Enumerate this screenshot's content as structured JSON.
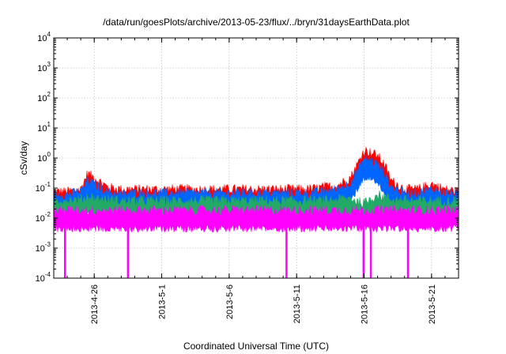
{
  "chart_data": {
    "type": "line",
    "title": "/data/run/goesPlots/archive/2013-05-23/flux/../bryn/31daysEarthData.plot",
    "xlabel": "Coordinated Universal Time (UTC)",
    "ylabel": "cSv/day",
    "yscale": "log",
    "ylim": [
      0.0001,
      10000
    ],
    "y_ticks": [
      {
        "base": "10",
        "exp": "-4",
        "value": 0.0001
      },
      {
        "base": "10",
        "exp": "-3",
        "value": 0.001
      },
      {
        "base": "10",
        "exp": "-2",
        "value": 0.01
      },
      {
        "base": "10",
        "exp": "-1",
        "value": 0.1
      },
      {
        "base": "10",
        "exp": "0",
        "value": 1
      },
      {
        "base": "10",
        "exp": "1",
        "value": 10
      },
      {
        "base": "10",
        "exp": "2",
        "value": 100
      },
      {
        "base": "10",
        "exp": "3",
        "value": 1000
      },
      {
        "base": "10",
        "exp": "4",
        "value": 10000
      }
    ],
    "xlim": [
      "2013-04-23",
      "2013-05-23"
    ],
    "x_ticks": [
      "2013-4-26",
      "2013-5-1",
      "2013-5-6",
      "2013-5-11",
      "2013-5-16",
      "2013-5-21"
    ],
    "grid": true,
    "legend": "none",
    "series": [
      {
        "color": "#ff0000",
        "points": [
          [
            "2013-04-23",
            0.05
          ],
          [
            "2013-04-24",
            0.05
          ],
          [
            "2013-04-25",
            0.06
          ],
          [
            "2013-04-25T12:00",
            0.2
          ],
          [
            "2013-04-26",
            0.15
          ],
          [
            "2013-04-27",
            0.07
          ],
          [
            "2013-04-28",
            0.06
          ],
          [
            "2013-04-29",
            0.06
          ],
          [
            "2013-04-30",
            0.06
          ],
          [
            "2013-05-01",
            0.06
          ],
          [
            "2013-05-02",
            0.06
          ],
          [
            "2013-05-03",
            0.06
          ],
          [
            "2013-05-04",
            0.06
          ],
          [
            "2013-05-05",
            0.06
          ],
          [
            "2013-05-06",
            0.06
          ],
          [
            "2013-05-07",
            0.06
          ],
          [
            "2013-05-08",
            0.06
          ],
          [
            "2013-05-09",
            0.06
          ],
          [
            "2013-05-10",
            0.06
          ],
          [
            "2013-05-11",
            0.06
          ],
          [
            "2013-05-12",
            0.06
          ],
          [
            "2013-05-13",
            0.07
          ],
          [
            "2013-05-14",
            0.08
          ],
          [
            "2013-05-15",
            0.15
          ],
          [
            "2013-05-15T12:00",
            0.4
          ],
          [
            "2013-05-16",
            1.2
          ],
          [
            "2013-05-16T12:00",
            1.0
          ],
          [
            "2013-05-17",
            0.8
          ],
          [
            "2013-05-17T12:00",
            0.4
          ],
          [
            "2013-05-18",
            0.12
          ],
          [
            "2013-05-19",
            0.06
          ],
          [
            "2013-05-20",
            0.06
          ],
          [
            "2013-05-21",
            0.09
          ],
          [
            "2013-05-22",
            0.06
          ],
          [
            "2013-05-23",
            0.05
          ]
        ]
      },
      {
        "color": "#0066ff",
        "points": [
          [
            "2013-04-23",
            0.04
          ],
          [
            "2013-04-24",
            0.04
          ],
          [
            "2013-04-25",
            0.05
          ],
          [
            "2013-04-25T12:00",
            0.11
          ],
          [
            "2013-04-26",
            0.09
          ],
          [
            "2013-04-27",
            0.05
          ],
          [
            "2013-04-28",
            0.04
          ],
          [
            "2013-04-29",
            0.045
          ],
          [
            "2013-04-30",
            0.045
          ],
          [
            "2013-05-01",
            0.045
          ],
          [
            "2013-05-02",
            0.045
          ],
          [
            "2013-05-03",
            0.045
          ],
          [
            "2013-05-04",
            0.045
          ],
          [
            "2013-05-05",
            0.045
          ],
          [
            "2013-05-06",
            0.045
          ],
          [
            "2013-05-07",
            0.045
          ],
          [
            "2013-05-08",
            0.045
          ],
          [
            "2013-05-09",
            0.045
          ],
          [
            "2013-05-10",
            0.045
          ],
          [
            "2013-05-11",
            0.045
          ],
          [
            "2013-05-12",
            0.045
          ],
          [
            "2013-05-13",
            0.05
          ],
          [
            "2013-05-14",
            0.06
          ],
          [
            "2013-05-15",
            0.1
          ],
          [
            "2013-05-15T12:00",
            0.25
          ],
          [
            "2013-05-16",
            0.6
          ],
          [
            "2013-05-16T12:00",
            0.55
          ],
          [
            "2013-05-17",
            0.4
          ],
          [
            "2013-05-17T12:00",
            0.2
          ],
          [
            "2013-05-18",
            0.07
          ],
          [
            "2013-05-19",
            0.045
          ],
          [
            "2013-05-20",
            0.045
          ],
          [
            "2013-05-21",
            0.06
          ],
          [
            "2013-05-22",
            0.045
          ],
          [
            "2013-05-23",
            0.04
          ]
        ]
      },
      {
        "color": "#22aa66",
        "points": [
          [
            "2013-04-23",
            0.025
          ],
          [
            "2013-04-25",
            0.027
          ],
          [
            "2013-04-25T12:00",
            0.035
          ],
          [
            "2013-04-26",
            0.03
          ],
          [
            "2013-04-28",
            0.025
          ],
          [
            "2013-05-03",
            0.025
          ],
          [
            "2013-05-08",
            0.025
          ],
          [
            "2013-05-13",
            0.025
          ],
          [
            "2013-05-15",
            0.03
          ],
          [
            "2013-05-16",
            0.02
          ],
          [
            "2013-05-16T12:00",
            0.03
          ],
          [
            "2013-05-17",
            0.04
          ],
          [
            "2013-05-18",
            0.028
          ],
          [
            "2013-05-20",
            0.025
          ],
          [
            "2013-05-23",
            0.025
          ]
        ]
      },
      {
        "color": "#ff00ff",
        "points": [
          [
            "2013-04-23",
            0.012
          ],
          [
            "2013-05-23",
            0.012
          ]
        ],
        "dropouts": [
          "2013-04-23T20:00",
          "2013-04-28T12:00",
          "2013-05-10T06:00",
          "2013-05-15T23:00",
          "2013-05-16T12:00",
          "2013-05-19T06:00"
        ]
      }
    ]
  }
}
